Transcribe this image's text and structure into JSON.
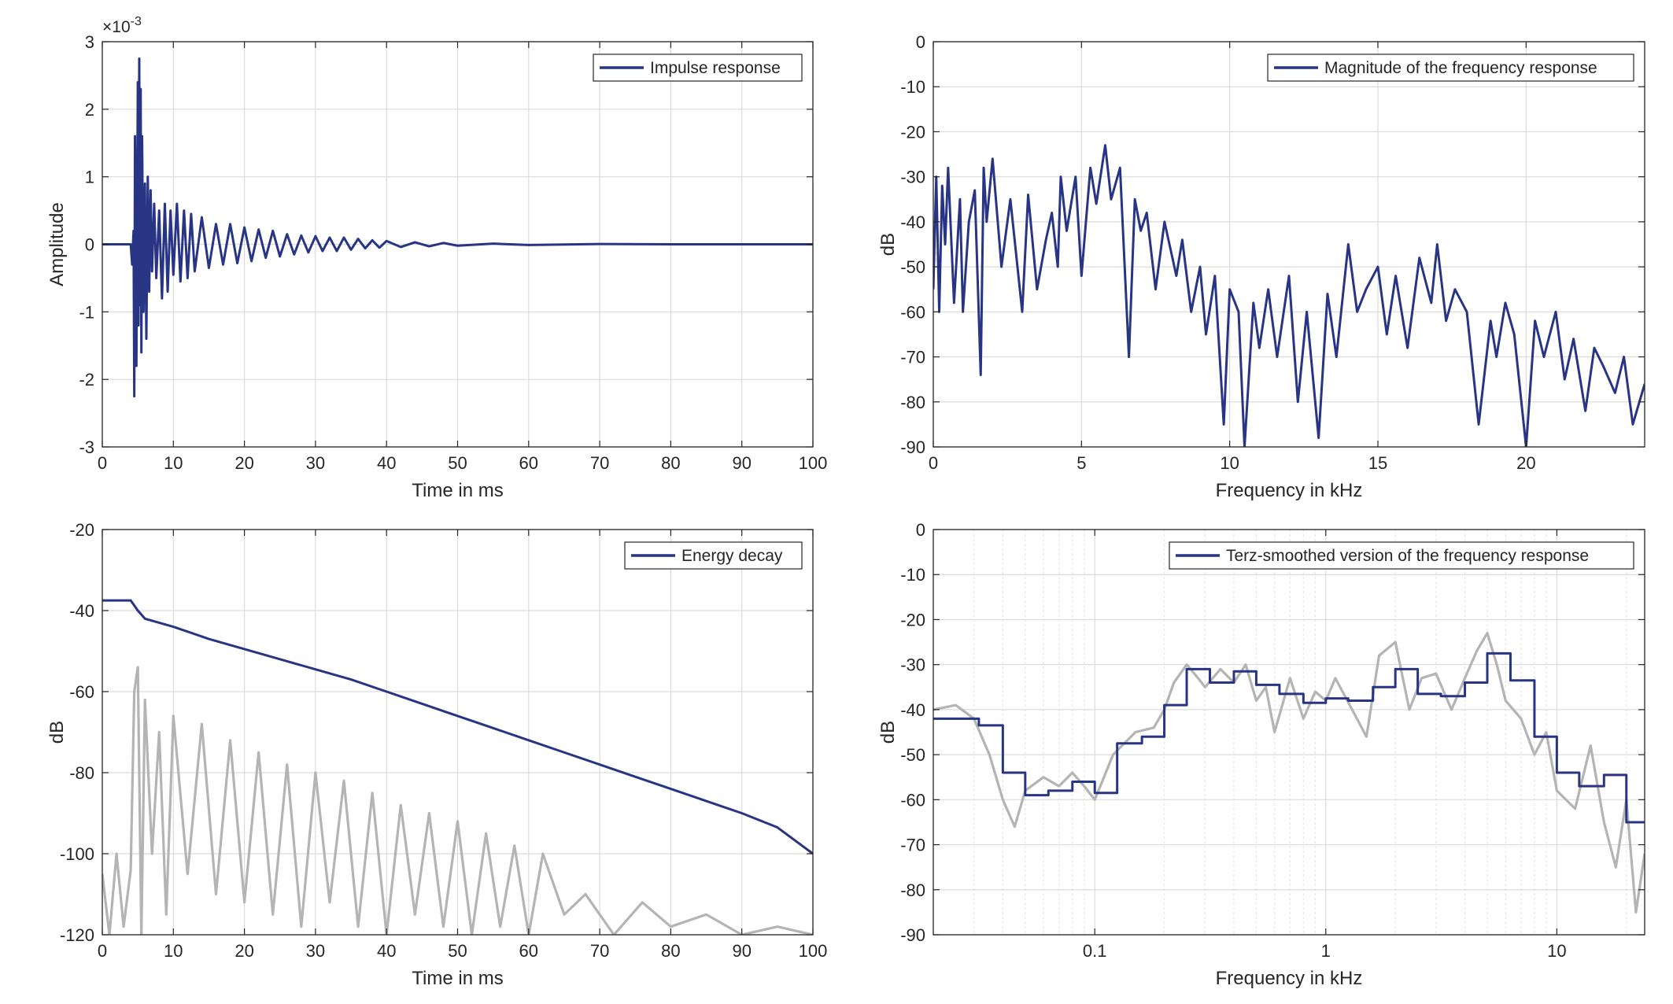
{
  "chart_data": [
    {
      "id": "impulse",
      "type": "line",
      "xlabel": "Time in ms",
      "ylabel": "Amplitude",
      "exponent_label": "×10",
      "exponent_power": "-3",
      "xlim": [
        0,
        100
      ],
      "ylim": [
        -3,
        3
      ],
      "xticks": [
        0,
        10,
        20,
        30,
        40,
        50,
        60,
        70,
        80,
        90,
        100
      ],
      "yticks": [
        -3,
        -2,
        -1,
        0,
        1,
        2,
        3
      ],
      "legend": "top-right",
      "grid": true,
      "series": [
        {
          "name": "Impulse response",
          "color": "#283484",
          "x": [
            0,
            4.0,
            4.2,
            4.4,
            4.5,
            4.6,
            4.8,
            5.0,
            5.1,
            5.2,
            5.3,
            5.4,
            5.5,
            5.6,
            5.8,
            6.0,
            6.2,
            6.4,
            6.6,
            6.8,
            7.0,
            7.3,
            7.6,
            8.0,
            8.4,
            8.8,
            9.2,
            9.6,
            10,
            10.5,
            11,
            11.5,
            12,
            12.5,
            13,
            14,
            15,
            16,
            17,
            18,
            19,
            20,
            21,
            22,
            23,
            24,
            25,
            26,
            27,
            28,
            29,
            30,
            31,
            32,
            33,
            34,
            35,
            36,
            37,
            38,
            39,
            40,
            42,
            44,
            46,
            48,
            50,
            55,
            60,
            70,
            80,
            90,
            100
          ],
          "y": [
            0,
            0,
            -0.3,
            0.2,
            -2.25,
            1.6,
            -1.8,
            2.4,
            -1.2,
            2.75,
            -0.9,
            2.3,
            -1.6,
            1.6,
            -1.0,
            0.9,
            -1.4,
            1.0,
            -0.7,
            0.8,
            -0.4,
            0.6,
            -0.5,
            0.5,
            -0.8,
            0.6,
            -0.7,
            0.5,
            -0.45,
            0.6,
            -0.55,
            0.5,
            -0.5,
            0.45,
            -0.4,
            0.4,
            -0.35,
            0.3,
            -0.3,
            0.3,
            -0.28,
            0.25,
            -0.25,
            0.22,
            -0.2,
            0.2,
            -0.18,
            0.15,
            -0.15,
            0.13,
            -0.12,
            0.12,
            -0.1,
            0.1,
            -0.1,
            0.1,
            -0.08,
            0.08,
            -0.06,
            0.06,
            -0.05,
            0.05,
            -0.04,
            0.03,
            -0.03,
            0.02,
            -0.02,
            0.01,
            -0.01,
            0.005,
            0,
            0,
            0
          ]
        }
      ]
    },
    {
      "id": "magnitude",
      "type": "line",
      "xlabel": "Frequency in kHz",
      "ylabel": "dB",
      "xlim": [
        0,
        24
      ],
      "ylim": [
        -90,
        0
      ],
      "xticks": [
        0,
        5,
        10,
        15,
        20
      ],
      "yticks": [
        0,
        -10,
        -20,
        -30,
        -40,
        -50,
        -60,
        -70,
        -80,
        -90
      ],
      "legend": "top-right",
      "grid": true,
      "series": [
        {
          "name": "Magnitude of the frequency response",
          "color": "#283484",
          "x": [
            0,
            0.1,
            0.2,
            0.3,
            0.4,
            0.5,
            0.7,
            0.9,
            1.0,
            1.2,
            1.4,
            1.6,
            1.7,
            1.8,
            2.0,
            2.3,
            2.6,
            3.0,
            3.2,
            3.5,
            3.8,
            4.0,
            4.2,
            4.3,
            4.5,
            4.8,
            5.0,
            5.3,
            5.5,
            5.8,
            6.0,
            6.3,
            6.6,
            6.8,
            7.0,
            7.2,
            7.5,
            7.8,
            8.0,
            8.2,
            8.4,
            8.7,
            9.0,
            9.2,
            9.5,
            9.8,
            10.0,
            10.3,
            10.5,
            10.8,
            11.0,
            11.3,
            11.6,
            12.0,
            12.3,
            12.6,
            13.0,
            13.3,
            13.6,
            14.0,
            14.3,
            14.6,
            15.0,
            15.3,
            15.6,
            16.0,
            16.4,
            16.8,
            17.0,
            17.3,
            17.6,
            18.0,
            18.4,
            18.8,
            19.0,
            19.3,
            19.6,
            20.0,
            20.3,
            20.6,
            21.0,
            21.3,
            21.6,
            22.0,
            22.3,
            22.6,
            23.0,
            23.3,
            23.6,
            24.0
          ],
          "y": [
            -55,
            -30,
            -60,
            -32,
            -45,
            -28,
            -58,
            -35,
            -60,
            -40,
            -33,
            -74,
            -28,
            -40,
            -26,
            -50,
            -35,
            -60,
            -34,
            -55,
            -44,
            -38,
            -50,
            -30,
            -42,
            -30,
            -52,
            -28,
            -36,
            -23,
            -35,
            -28,
            -70,
            -35,
            -42,
            -38,
            -55,
            -40,
            -46,
            -52,
            -44,
            -60,
            -50,
            -65,
            -52,
            -85,
            -55,
            -60,
            -90,
            -58,
            -68,
            -55,
            -70,
            -52,
            -80,
            -60,
            -88,
            -56,
            -70,
            -45,
            -60,
            -55,
            -50,
            -65,
            -52,
            -68,
            -48,
            -58,
            -45,
            -62,
            -55,
            -60,
            -85,
            -62,
            -70,
            -58,
            -65,
            -90,
            -62,
            -70,
            -60,
            -75,
            -66,
            -82,
            -68,
            -72,
            -78,
            -70,
            -85,
            -76
          ]
        }
      ]
    },
    {
      "id": "energy",
      "type": "line",
      "xlabel": "Time in ms",
      "ylabel": "dB",
      "xlim": [
        0,
        100
      ],
      "ylim": [
        -120,
        -20
      ],
      "xticks": [
        0,
        10,
        20,
        30,
        40,
        50,
        60,
        70,
        80,
        90,
        100
      ],
      "yticks": [
        -20,
        -40,
        -60,
        -80,
        -100,
        -120
      ],
      "legend": "top-right",
      "grid": true,
      "series": [
        {
          "name": "Energy decay",
          "color": "#283484",
          "x": [
            0,
            4,
            5,
            6,
            8,
            10,
            15,
            20,
            25,
            30,
            35,
            40,
            45,
            50,
            55,
            60,
            65,
            70,
            75,
            80,
            85,
            90,
            95,
            100
          ],
          "y": [
            -37.5,
            -37.5,
            -40,
            -42,
            -43,
            -44,
            -47,
            -49.5,
            -52,
            -54.5,
            -57,
            -60,
            -63,
            -66,
            -69,
            -72,
            -75,
            -78,
            -81,
            -84,
            -87,
            -90,
            -93.5,
            -100
          ]
        },
        {
          "color": "#b4b4b4",
          "x": [
            0,
            1,
            2,
            3,
            4,
            4.5,
            5,
            5.5,
            6,
            7,
            8,
            9,
            10,
            12,
            14,
            16,
            18,
            20,
            22,
            24,
            26,
            28,
            30,
            32,
            34,
            36,
            38,
            40,
            42,
            44,
            46,
            48,
            50,
            52,
            54,
            56,
            58,
            60,
            62,
            65,
            68,
            72,
            76,
            80,
            85,
            90,
            95,
            100
          ],
          "y": [
            -105,
            -120,
            -100,
            -118,
            -104,
            -60,
            -54,
            -120,
            -62,
            -100,
            -70,
            -115,
            -66,
            -105,
            -68,
            -110,
            -72,
            -112,
            -75,
            -115,
            -78,
            -118,
            -80,
            -112,
            -82,
            -118,
            -85,
            -120,
            -88,
            -115,
            -90,
            -118,
            -92,
            -120,
            -95,
            -118,
            -98,
            -120,
            -100,
            -115,
            -110,
            -120,
            -112,
            -118,
            -115,
            -120,
            -118,
            -120
          ]
        }
      ]
    },
    {
      "id": "terz",
      "type": "line",
      "xlabel": "Frequency in kHz",
      "ylabel": "dB",
      "xscale": "log",
      "xlim": [
        0.02,
        24
      ],
      "ylim": [
        -90,
        0
      ],
      "xticks": [
        0.1,
        1,
        10
      ],
      "xticklabels": [
        "0.1",
        "1",
        "10"
      ],
      "yticks": [
        0,
        -10,
        -20,
        -30,
        -40,
        -50,
        -60,
        -70,
        -80,
        -90
      ],
      "legend": "top-right",
      "grid": true,
      "series": [
        {
          "name": "Terz-smoothed version of the frequency response",
          "color": "#283484",
          "step": true,
          "x": [
            0.02,
            0.0315,
            0.04,
            0.05,
            0.063,
            0.08,
            0.1,
            0.125,
            0.16,
            0.2,
            0.25,
            0.315,
            0.4,
            0.5,
            0.63,
            0.8,
            1.0,
            1.25,
            1.6,
            2.0,
            2.5,
            3.15,
            4.0,
            5.0,
            6.3,
            8.0,
            10.0,
            12.5,
            16.0,
            20.0,
            24.0
          ],
          "y": [
            -42,
            -43.5,
            -54,
            -59,
            -58,
            -56,
            -58.5,
            -47.5,
            -46,
            -39,
            -31,
            -34,
            -31.5,
            -34.5,
            -36.5,
            -38.5,
            -37.5,
            -38,
            -35,
            -31,
            -36.5,
            -37,
            -34,
            -27.5,
            -33.5,
            -46,
            -54,
            -57,
            -54.5,
            -65,
            -65
          ]
        },
        {
          "color": "#b4b4b4",
          "x": [
            0.02,
            0.025,
            0.03,
            0.035,
            0.04,
            0.045,
            0.05,
            0.06,
            0.07,
            0.08,
            0.09,
            0.1,
            0.12,
            0.15,
            0.18,
            0.2,
            0.22,
            0.25,
            0.28,
            0.3,
            0.35,
            0.4,
            0.45,
            0.5,
            0.55,
            0.6,
            0.7,
            0.8,
            0.9,
            1.0,
            1.1,
            1.3,
            1.5,
            1.7,
            2.0,
            2.3,
            2.6,
            3.0,
            3.5,
            4.0,
            4.5,
            5.0,
            5.5,
            6.0,
            7.0,
            8.0,
            9.0,
            10.0,
            12.0,
            14.0,
            16.0,
            18.0,
            20.0,
            22.0,
            24.0
          ],
          "y": [
            -40,
            -39,
            -42,
            -50,
            -60,
            -66,
            -58,
            -55,
            -57,
            -54,
            -57,
            -60,
            -50,
            -45,
            -44,
            -40,
            -34,
            -30,
            -33,
            -35,
            -31,
            -34,
            -30,
            -38,
            -35,
            -45,
            -33,
            -42,
            -36,
            -38,
            -33,
            -40,
            -46,
            -28,
            -25,
            -40,
            -33,
            -32,
            -40,
            -33,
            -27,
            -23,
            -30,
            -38,
            -42,
            -50,
            -45,
            -58,
            -62,
            -48,
            -65,
            -75,
            -60,
            -85,
            -72
          ]
        }
      ]
    }
  ]
}
